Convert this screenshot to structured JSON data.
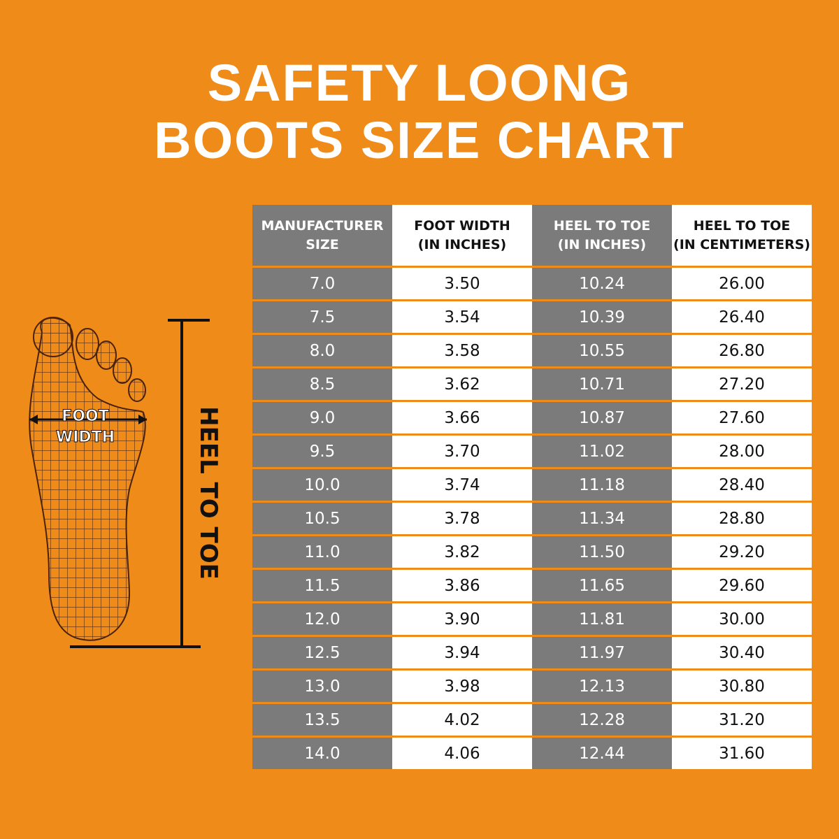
{
  "header": {
    "title": [
      "SAFETY LOONG",
      "BOOTS SIZE CHART"
    ]
  },
  "illustration": {
    "width_label": [
      "FOOT",
      "WIDTH"
    ],
    "length_label": "HEEL TO TOE"
  },
  "table": {
    "columns": [
      [
        "MANUFACTURER",
        "SIZE"
      ],
      [
        "FOOT WIDTH",
        "(IN INCHES)"
      ],
      [
        "HEEL TO TOE",
        "(IN INCHES)"
      ],
      [
        "HEEL TO TOE",
        "(IN CENTIMETERS)"
      ]
    ],
    "rows": [
      [
        "7.0",
        "3.50",
        "10.24",
        "26.00"
      ],
      [
        "7.5",
        "3.54",
        "10.39",
        "26.40"
      ],
      [
        "8.0",
        "3.58",
        "10.55",
        "26.80"
      ],
      [
        "8.5",
        "3.62",
        "10.71",
        "27.20"
      ],
      [
        "9.0",
        "3.66",
        "10.87",
        "27.60"
      ],
      [
        "9.5",
        "3.70",
        "11.02",
        "28.00"
      ],
      [
        "10.0",
        "3.74",
        "11.18",
        "28.40"
      ],
      [
        "10.5",
        "3.78",
        "11.34",
        "28.80"
      ],
      [
        "11.0",
        "3.82",
        "11.50",
        "29.20"
      ],
      [
        "11.5",
        "3.86",
        "11.65",
        "29.60"
      ],
      [
        "12.0",
        "3.90",
        "11.81",
        "30.00"
      ],
      [
        "12.5",
        "3.94",
        "11.97",
        "30.40"
      ],
      [
        "13.0",
        "3.98",
        "12.13",
        "30.80"
      ],
      [
        "13.5",
        "4.02",
        "12.28",
        "31.20"
      ],
      [
        "14.0",
        "4.06",
        "12.44",
        "31.60"
      ]
    ]
  }
}
